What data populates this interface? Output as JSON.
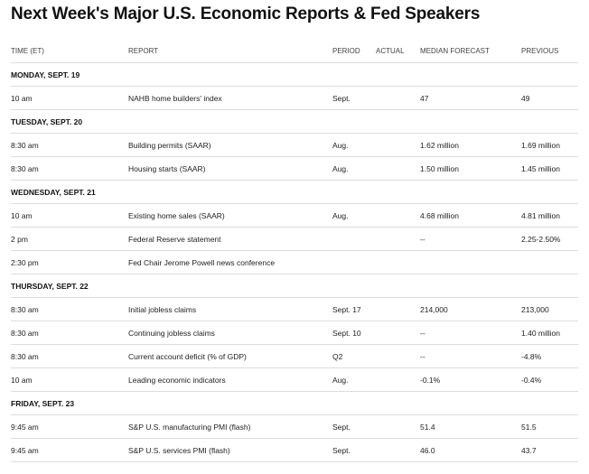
{
  "title": "Next Week's Major U.S. Economic Reports & Fed Speakers",
  "columns": [
    "TIME (ET)",
    "REPORT",
    "PERIOD",
    "ACTUAL",
    "MEDIAN FORECAST",
    "PREVIOUS"
  ],
  "rows": [
    {
      "day": "MONDAY, SEPT. 19"
    },
    {
      "cells": [
        "10 am",
        "NAHB home builders' index",
        "Sept.",
        "",
        "47",
        "49"
      ]
    },
    {
      "day": "TUESDAY, SEPT. 20"
    },
    {
      "cells": [
        "8:30 am",
        "Building permits (SAAR)",
        "Aug.",
        "",
        "1.62 million",
        "1.69 million"
      ]
    },
    {
      "cells": [
        "8:30 am",
        "Housing starts (SAAR)",
        "Aug.",
        "",
        "1.50 million",
        "1.45 million"
      ]
    },
    {
      "day": "WEDNESDAY, SEPT. 21"
    },
    {
      "cells": [
        "10 am",
        "Existing home sales (SAAR)",
        "Aug.",
        "",
        "4.68 million",
        "4.81 million"
      ]
    },
    {
      "cells": [
        "2 pm",
        "Federal Reserve statement",
        "",
        "",
        "--",
        "2.25-2.50%"
      ]
    },
    {
      "cells": [
        "2:30 pm",
        "Fed Chair Jerome Powell news conference",
        "",
        "",
        "",
        ""
      ]
    },
    {
      "day": "THURSDAY, SEPT. 22"
    },
    {
      "cells": [
        "8:30 am",
        "Initial jobless claims",
        "Sept. 17",
        "",
        "214,000",
        "213,000"
      ]
    },
    {
      "cells": [
        "8:30 am",
        "Continuing jobless claims",
        "Sept. 10",
        "",
        "--",
        "1.40 million"
      ]
    },
    {
      "cells": [
        "8:30 am",
        "Current account deficit (% of GDP)",
        "Q2",
        "",
        "--",
        "-4.8%"
      ]
    },
    {
      "cells": [
        "10 am",
        "Leading economic indicators",
        "Aug.",
        "",
        "-0.1%",
        "-0.4%"
      ]
    },
    {
      "day": "FRIDAY, SEPT. 23"
    },
    {
      "cells": [
        "9:45 am",
        "S&P U.S. manufacturing PMI (flash)",
        "Sept.",
        "",
        "51.4",
        "51.5"
      ]
    },
    {
      "cells": [
        "9:45 am",
        "S&P U.S. services PMI (flash)",
        "Sept.",
        "",
        "46.0",
        "43.7"
      ]
    }
  ]
}
